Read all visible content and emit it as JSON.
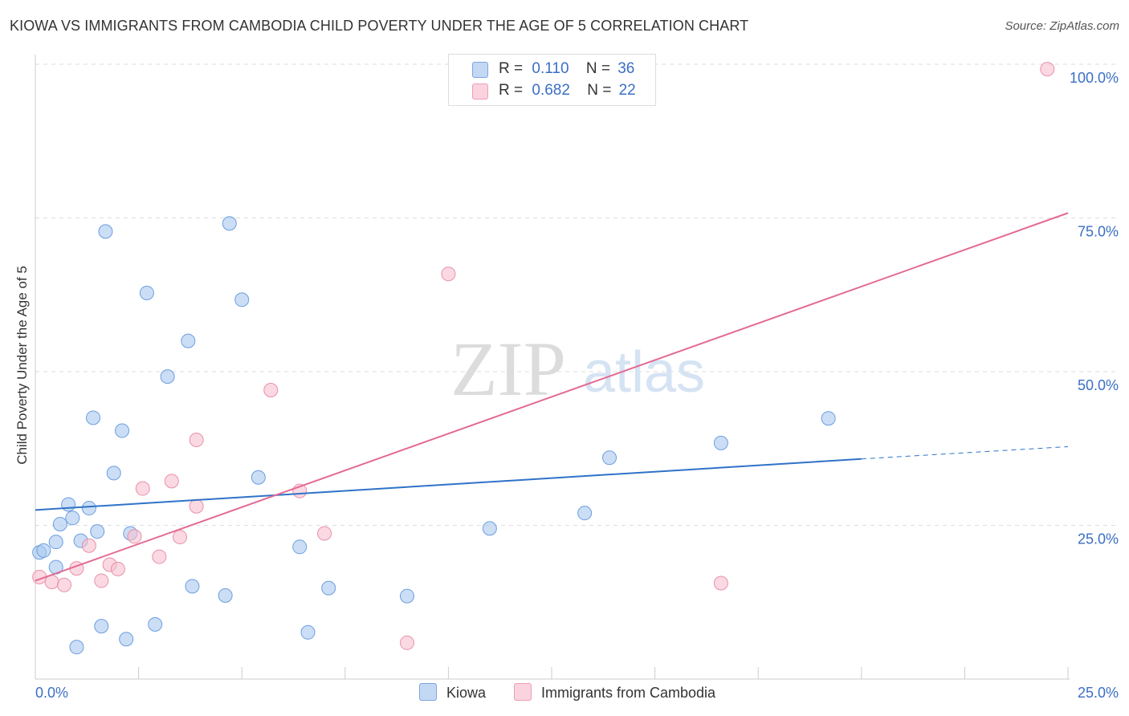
{
  "title": "KIOWA VS IMMIGRANTS FROM CAMBODIA CHILD POVERTY UNDER THE AGE OF 5 CORRELATION CHART",
  "source": "Source: ZipAtlas.com",
  "watermark": {
    "zip": "ZIP",
    "atlas": "atlas"
  },
  "legend": {
    "r_label": "R =",
    "n_label": "N =",
    "rows": [
      {
        "name": "Kiowa",
        "r": "0.110",
        "n": "36",
        "color": "#a9c8ef",
        "border": "#6b9ee0"
      },
      {
        "name": "Immigrants from Cambodia",
        "r": "0.682",
        "n": "22",
        "color": "#f8bfcf",
        "border": "#e890aa"
      }
    ]
  },
  "chart_data": {
    "type": "scatter",
    "title": "KIOWA VS IMMIGRANTS FROM CAMBODIA CHILD POVERTY UNDER THE AGE OF 5 CORRELATION CHART",
    "xlabel": "",
    "ylabel": "Child Poverty Under the Age of 5",
    "xlim": [
      0,
      25
    ],
    "ylim": [
      0,
      102
    ],
    "x_tick_labels": [
      {
        "value": 0,
        "label": "0.0%"
      },
      {
        "value": 25,
        "label": "25.0%"
      }
    ],
    "y_tick_labels": [
      {
        "value": 25,
        "label": "25.0%"
      },
      {
        "value": 50,
        "label": "50.0%"
      },
      {
        "value": 75,
        "label": "75.0%"
      },
      {
        "value": 100,
        "label": "100.0%"
      }
    ],
    "series": [
      {
        "name": "Kiowa",
        "color": "#a9c8ef",
        "stroke": "#6b9ee0",
        "line_color": "#2f72c8",
        "trend": {
          "x0": 0,
          "y0": 27.5,
          "x1": 20,
          "y1": 35.8,
          "dash_to_x": 25,
          "dash_to_y": 37.8
        },
        "points": [
          [
            0.1,
            20.6
          ],
          [
            0.2,
            20.9
          ],
          [
            0.5,
            22.3
          ],
          [
            0.5,
            18.2
          ],
          [
            0.6,
            25.2
          ],
          [
            0.8,
            28.4
          ],
          [
            0.9,
            26.2
          ],
          [
            1.0,
            5.2
          ],
          [
            1.1,
            22.5
          ],
          [
            1.3,
            27.8
          ],
          [
            1.4,
            42.5
          ],
          [
            1.5,
            24.0
          ],
          [
            1.6,
            8.6
          ],
          [
            1.7,
            72.8
          ],
          [
            1.9,
            33.5
          ],
          [
            2.1,
            40.4
          ],
          [
            2.2,
            6.5
          ],
          [
            2.3,
            23.7
          ],
          [
            2.7,
            62.8
          ],
          [
            2.9,
            8.9
          ],
          [
            3.2,
            49.2
          ],
          [
            3.7,
            55.0
          ],
          [
            3.8,
            15.1
          ],
          [
            4.6,
            13.6
          ],
          [
            4.7,
            74.1
          ],
          [
            5.0,
            61.7
          ],
          [
            5.4,
            32.8
          ],
          [
            6.4,
            21.5
          ],
          [
            6.6,
            7.6
          ],
          [
            7.1,
            14.8
          ],
          [
            9.0,
            13.5
          ],
          [
            11.0,
            24.5
          ],
          [
            13.3,
            27.0
          ],
          [
            13.9,
            36.0
          ],
          [
            16.6,
            38.4
          ],
          [
            19.2,
            42.4
          ]
        ]
      },
      {
        "name": "Immigrants from Cambodia",
        "color": "#f8bfcf",
        "stroke": "#e890aa",
        "line_color": "#e36a93",
        "trend": {
          "x0": 0,
          "y0": 16.0,
          "x1": 25,
          "y1": 75.8
        },
        "points": [
          [
            0.1,
            16.6
          ],
          [
            0.4,
            15.8
          ],
          [
            0.7,
            15.3
          ],
          [
            1.0,
            18.0
          ],
          [
            1.3,
            21.7
          ],
          [
            1.6,
            16.0
          ],
          [
            1.8,
            18.6
          ],
          [
            2.0,
            17.9
          ],
          [
            2.4,
            23.2
          ],
          [
            2.6,
            31.0
          ],
          [
            3.0,
            19.9
          ],
          [
            3.3,
            32.2
          ],
          [
            3.5,
            23.1
          ],
          [
            3.9,
            28.1
          ],
          [
            3.9,
            38.9
          ],
          [
            5.7,
            47.0
          ],
          [
            6.4,
            30.6
          ],
          [
            7.0,
            23.7
          ],
          [
            9.0,
            5.9
          ],
          [
            10.0,
            65.9
          ],
          [
            16.6,
            15.6
          ],
          [
            24.5,
            99.2
          ]
        ]
      }
    ]
  }
}
